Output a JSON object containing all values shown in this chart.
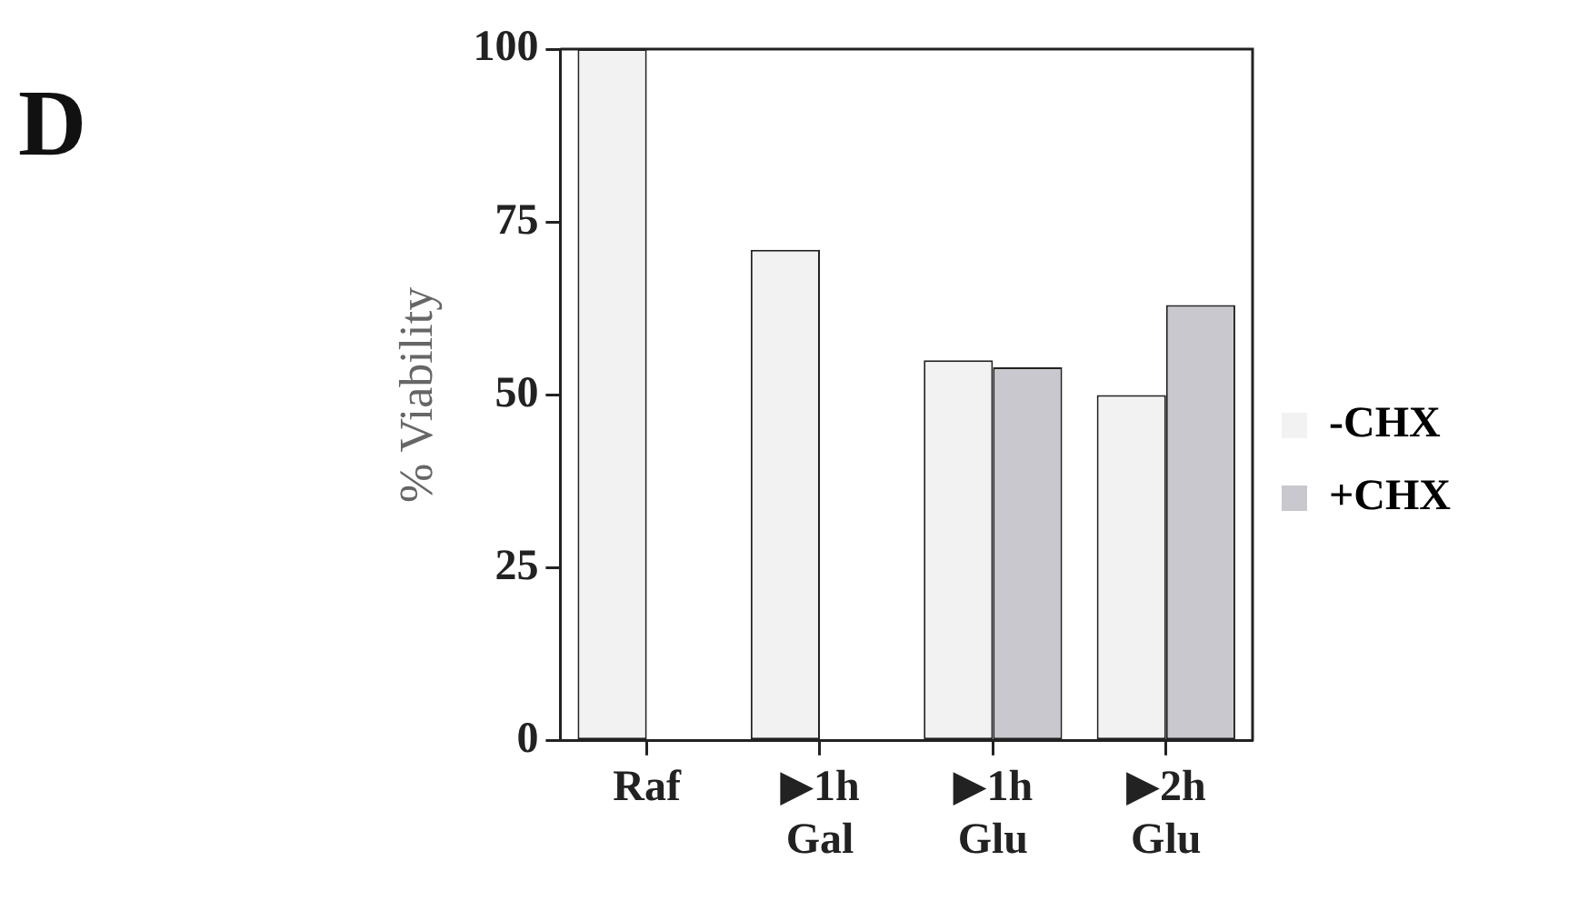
{
  "chart_data": {
    "type": "bar",
    "ylabel": "% Viability",
    "annotations": [
      "D"
    ],
    "categories": [
      "Raf",
      "▶1h\nGal",
      "▶1h\nGlu",
      "▶2h\nGlu"
    ],
    "series": [
      {
        "name": "-CHX",
        "color": "#f2f2f2",
        "values": [
          100,
          71,
          55,
          50
        ]
      },
      {
        "name": "+CHX",
        "color": "#c8c8ce",
        "values": [
          null,
          null,
          54,
          63
        ]
      }
    ],
    "ylim": [
      0,
      100
    ],
    "yticks": [
      0,
      25,
      50,
      75,
      100
    ],
    "grid": false,
    "legend": "right"
  }
}
